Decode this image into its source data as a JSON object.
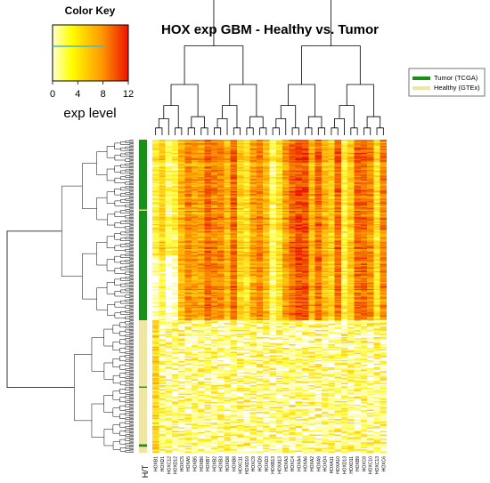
{
  "chart_data": {
    "type": "heatmap",
    "title": "HOX exp GBM - Healthy vs. Tumor",
    "color_key": {
      "title": "Color Key",
      "label": "exp level",
      "ticks": [
        "0",
        "4",
        "8",
        "12"
      ],
      "range": [
        0,
        12
      ],
      "colors": [
        "#ffffd0",
        "#ffff00",
        "#ff9900",
        "#ee1100"
      ]
    },
    "legend": {
      "placement": "top-right",
      "items": [
        {
          "label": "Tumor (TCGA)",
          "color": "#1a8f1a"
        },
        {
          "label": "Healthy (GTEx)",
          "color": "#efe6a4"
        }
      ]
    },
    "row_annotation_label": "H/T",
    "columns": [
      "HOXB1",
      "HOXD1",
      "HOXC12",
      "HOXD12",
      "HOXC5",
      "HOXA5",
      "HOXB5",
      "HOXB6",
      "HOXB7",
      "HOXB2",
      "HOXB3",
      "HOXD8",
      "HOXB8",
      "HOXC11",
      "HOXD10",
      "HOXC9",
      "HOXD9",
      "HOXD3",
      "HOXB13",
      "HOXA13",
      "HOXA3",
      "HOXC4",
      "HOXA4",
      "HOXA6",
      "HOXA2",
      "HOXA9",
      "HOXD4",
      "HOXA11",
      "HOXA10",
      "HOXD13",
      "HOXD11",
      "HOXB9",
      "HOXC8",
      "HOXC10",
      "HOXC13",
      "HOXC6"
    ],
    "groups": [
      {
        "name": "Tumor (TCGA)",
        "rows": 150
      },
      {
        "name": "Healthy (GTEx)",
        "rows": 110
      }
    ]
  }
}
